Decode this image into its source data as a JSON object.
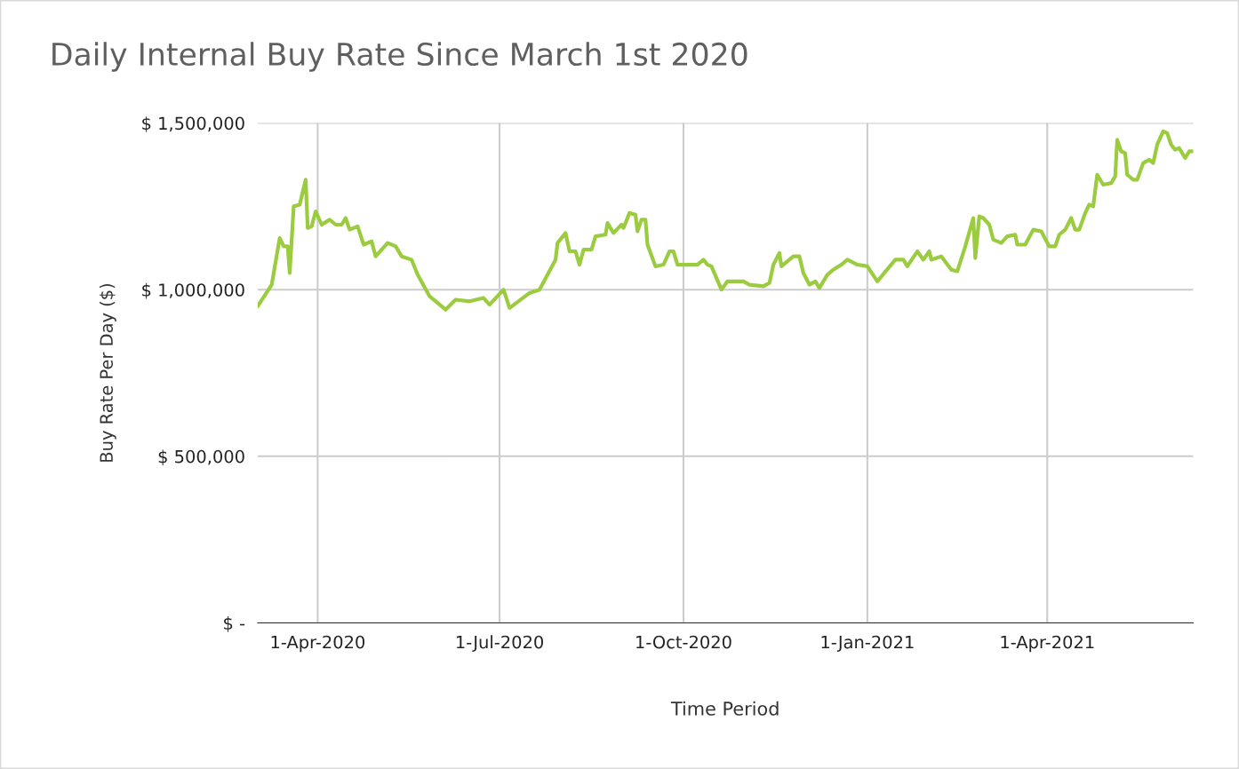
{
  "chart_data": {
    "type": "line",
    "title": "Daily Internal Buy Rate Since March 1st 2020",
    "xlabel": "Time Period",
    "ylabel": "Buy Rate Per Day ($)",
    "x": [
      "2020-03-02",
      "2020-03-09",
      "2020-03-13",
      "2020-03-15",
      "2020-03-17",
      "2020-03-18",
      "2020-03-20",
      "2020-03-23",
      "2020-03-26",
      "2020-03-27",
      "2020-03-29",
      "2020-03-31",
      "2020-04-03",
      "2020-04-07",
      "2020-04-10",
      "2020-04-13",
      "2020-04-15",
      "2020-04-17",
      "2020-04-21",
      "2020-04-24",
      "2020-04-28",
      "2020-04-30",
      "2020-05-06",
      "2020-05-10",
      "2020-05-13",
      "2020-05-18",
      "2020-05-21",
      "2020-05-27",
      "2020-06-04",
      "2020-06-09",
      "2020-06-16",
      "2020-06-23",
      "2020-06-26",
      "2020-07-03",
      "2020-07-06",
      "2020-07-16",
      "2020-07-21",
      "2020-07-29",
      "2020-07-30",
      "2020-08-03",
      "2020-08-05",
      "2020-08-08",
      "2020-08-10",
      "2020-08-12",
      "2020-08-16",
      "2020-08-18",
      "2020-08-23",
      "2020-08-24",
      "2020-08-27",
      "2020-08-31",
      "2020-09-01",
      "2020-09-04",
      "2020-09-07",
      "2020-09-08",
      "2020-09-10",
      "2020-09-12",
      "2020-09-13",
      "2020-09-17",
      "2020-09-21",
      "2020-09-24",
      "2020-09-26",
      "2020-09-28",
      "2020-10-04",
      "2020-10-08",
      "2020-10-11",
      "2020-10-13",
      "2020-10-15",
      "2020-10-20",
      "2020-10-23",
      "2020-10-31",
      "2020-11-03",
      "2020-11-10",
      "2020-11-13",
      "2020-11-15",
      "2020-11-18",
      "2020-11-19",
      "2020-11-25",
      "2020-11-28",
      "2020-11-30",
      "2020-12-03",
      "2020-12-06",
      "2020-12-08",
      "2020-12-12",
      "2020-12-15",
      "2020-12-19",
      "2020-12-22",
      "2020-12-27",
      "2021-01-01",
      "2021-01-06",
      "2021-01-15",
      "2021-01-19",
      "2021-01-21",
      "2021-01-26",
      "2021-01-29",
      "2021-02-01",
      "2021-02-02",
      "2021-02-07",
      "2021-02-12",
      "2021-02-15",
      "2021-02-19",
      "2021-02-23",
      "2021-02-24",
      "2021-02-26",
      "2021-02-28",
      "2021-03-03",
      "2021-03-05",
      "2021-03-09",
      "2021-03-12",
      "2021-03-16",
      "2021-03-17",
      "2021-03-21",
      "2021-03-25",
      "2021-03-29",
      "2021-04-02",
      "2021-04-05",
      "2021-04-07",
      "2021-04-10",
      "2021-04-13",
      "2021-04-15",
      "2021-04-17",
      "2021-04-20",
      "2021-04-22",
      "2021-04-24",
      "2021-04-26",
      "2021-04-29",
      "2021-05-03",
      "2021-05-05",
      "2021-05-06",
      "2021-05-08",
      "2021-05-10",
      "2021-05-11",
      "2021-05-14",
      "2021-05-16",
      "2021-05-19",
      "2021-05-22",
      "2021-05-24",
      "2021-05-26",
      "2021-05-29",
      "2021-05-31",
      "2021-06-02",
      "2021-06-04",
      "2021-06-06",
      "2021-06-09",
      "2021-06-11",
      "2021-06-13"
    ],
    "series": [
      {
        "color": "#9bcb3e",
        "values": [
          950000,
          1015000,
          1155000,
          1130000,
          1130000,
          1050000,
          1250000,
          1255000,
          1330000,
          1185000,
          1190000,
          1235000,
          1195000,
          1210000,
          1195000,
          1195000,
          1215000,
          1180000,
          1190000,
          1135000,
          1145000,
          1100000,
          1140000,
          1130000,
          1100000,
          1090000,
          1045000,
          980000,
          940000,
          970000,
          965000,
          975000,
          955000,
          1000000,
          945000,
          990000,
          1000000,
          1090000,
          1140000,
          1170000,
          1115000,
          1115000,
          1075000,
          1120000,
          1120000,
          1160000,
          1165000,
          1200000,
          1170000,
          1195000,
          1185000,
          1230000,
          1225000,
          1175000,
          1210000,
          1210000,
          1135000,
          1070000,
          1075000,
          1115000,
          1115000,
          1075000,
          1075000,
          1075000,
          1090000,
          1075000,
          1070000,
          1000000,
          1025000,
          1025000,
          1015000,
          1010000,
          1020000,
          1075000,
          1110000,
          1070000,
          1100000,
          1100000,
          1050000,
          1015000,
          1025000,
          1005000,
          1045000,
          1060000,
          1075000,
          1090000,
          1075000,
          1070000,
          1025000,
          1090000,
          1090000,
          1070000,
          1115000,
          1090000,
          1115000,
          1090000,
          1100000,
          1060000,
          1055000,
          1130000,
          1215000,
          1095000,
          1220000,
          1215000,
          1195000,
          1150000,
          1140000,
          1160000,
          1165000,
          1135000,
          1135000,
          1180000,
          1175000,
          1130000,
          1130000,
          1165000,
          1180000,
          1215000,
          1180000,
          1180000,
          1230000,
          1255000,
          1250000,
          1345000,
          1315000,
          1320000,
          1340000,
          1450000,
          1415000,
          1410000,
          1345000,
          1330000,
          1330000,
          1380000,
          1390000,
          1380000,
          1435000,
          1475000,
          1470000,
          1435000,
          1420000,
          1425000,
          1395000,
          1415000,
          1415000
        ]
      }
    ],
    "xlim": [
      "2020-03-02",
      "2021-06-13"
    ],
    "xticks": [
      {
        "value": "2020-04-01",
        "label": "1-Apr-2020"
      },
      {
        "value": "2020-07-01",
        "label": "1-Jul-2020"
      },
      {
        "value": "2020-10-01",
        "label": "1-Oct-2020"
      },
      {
        "value": "2021-01-01",
        "label": "1-Jan-2021"
      },
      {
        "value": "2021-04-01",
        "label": "1-Apr-2021"
      }
    ],
    "ylim": [
      0,
      1500000
    ],
    "yticks": [
      {
        "value": 0,
        "label": "$ -"
      },
      {
        "value": 500000,
        "label": "$ 500,000"
      },
      {
        "value": 1000000,
        "label": "$ 1,000,000"
      },
      {
        "value": 1500000,
        "label": "$ 1,500,000"
      }
    ],
    "grid": true,
    "marker": "none",
    "line_style": "solid"
  }
}
